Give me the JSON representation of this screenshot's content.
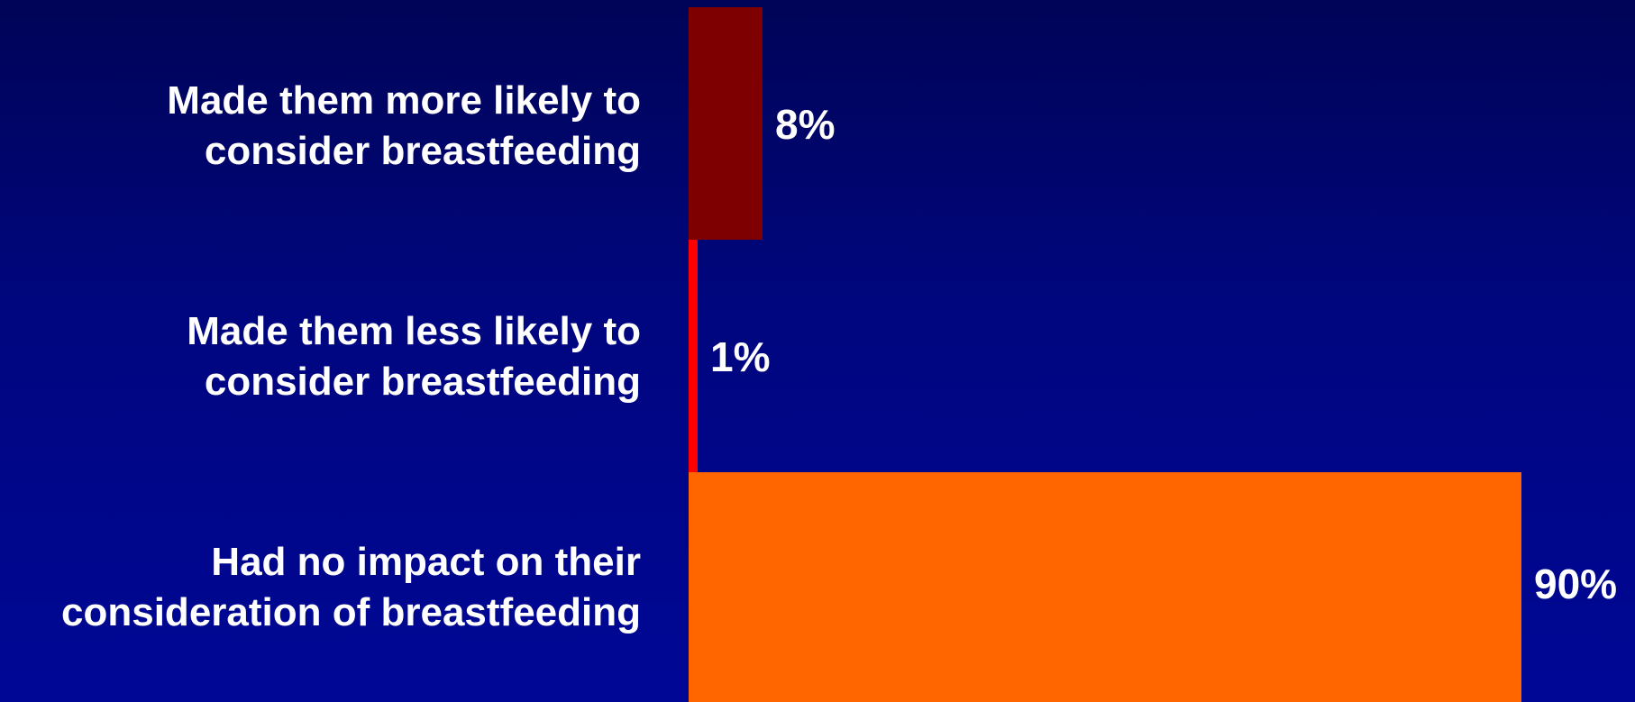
{
  "chart_data": {
    "type": "bar",
    "orientation": "horizontal",
    "categories": [
      "Made them more likely to\nconsider breastfeeding",
      "Made them less likely to\nconsider breastfeeding",
      "Had no impact on their\nconsideration of breastfeeding"
    ],
    "values": [
      8,
      1,
      90
    ],
    "value_labels": [
      "8%",
      "1%",
      "90%"
    ],
    "bar_colors": [
      "#7f0000",
      "#ff0000",
      "#ff6600"
    ],
    "xlim": [
      0,
      90
    ],
    "grid": false,
    "title": "",
    "xlabel": "",
    "ylabel": ""
  },
  "colors": {
    "background_top": "#000457",
    "background_bottom": "#000795",
    "text": "#ffffff"
  }
}
